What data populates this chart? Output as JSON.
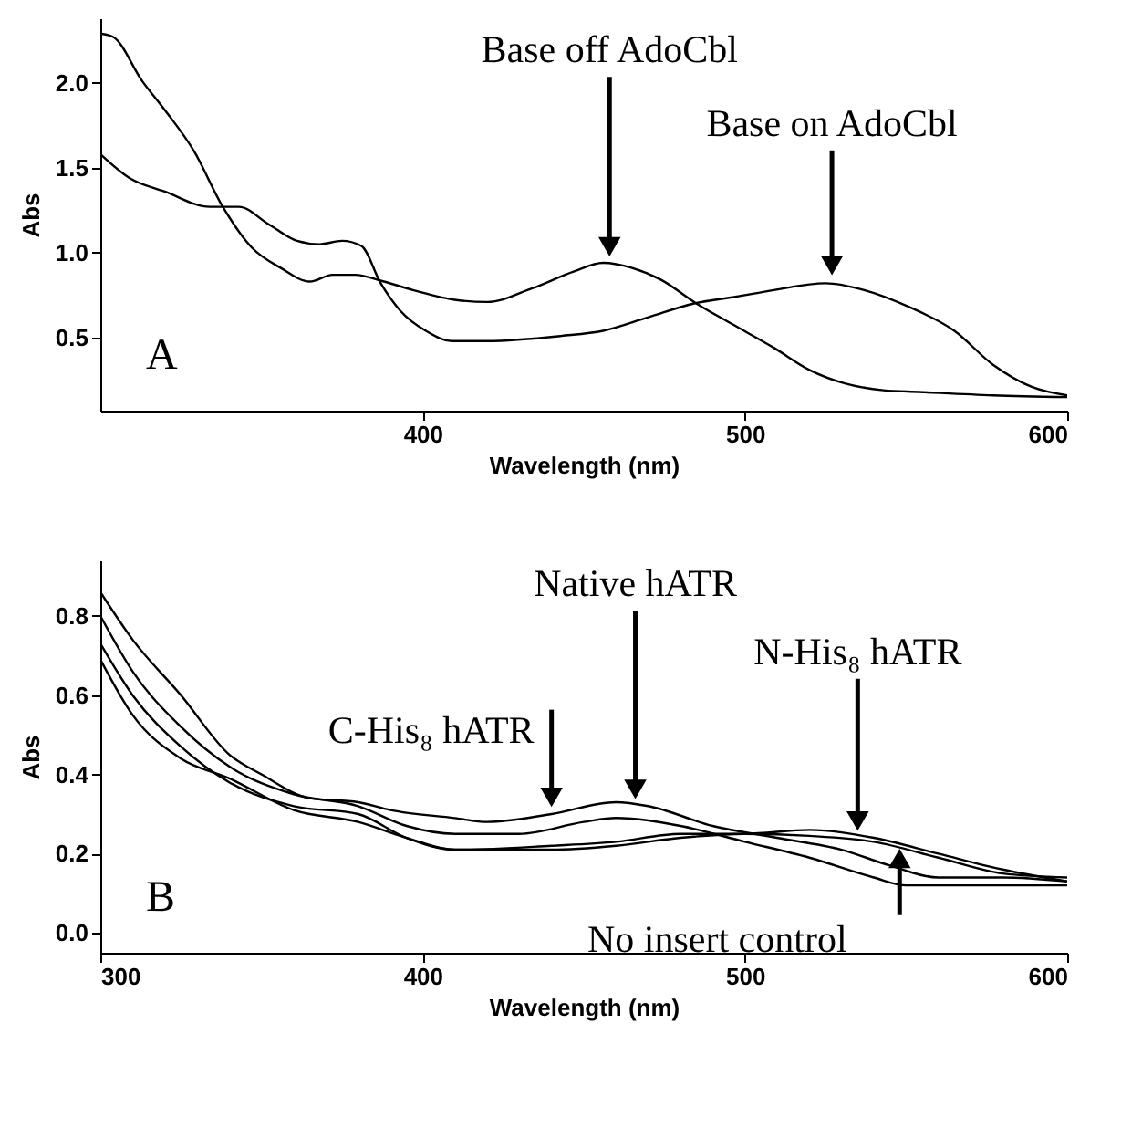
{
  "chart_data": [
    {
      "type": "line",
      "xlabel": "Wavelength (nm)",
      "ylabel": "Abs",
      "xlim": [
        300,
        600
      ],
      "ylim": [
        0.07,
        2.38
      ],
      "xticks": [
        400,
        500,
        600
      ],
      "yticks": [
        {
          "value": 0.5,
          "label": "0.5"
        },
        {
          "value": 1.0,
          "label": "1.0"
        },
        {
          "value": 1.5,
          "label": "1.5"
        },
        {
          "value": 2.0,
          "label": "2.0"
        }
      ],
      "grid": false,
      "annotations": [
        {
          "text": "Base off AdoCbl",
          "x": 458,
          "y": 0.96
        },
        {
          "text": "Base on AdoCbl",
          "x": 527,
          "y": 0.85
        },
        "A"
      ],
      "series": [
        {
          "color": "#000000",
          "x": [
            300,
            304,
            313,
            320,
            329,
            338,
            347,
            356,
            365,
            372,
            379,
            388,
            397,
            411,
            420,
            434,
            447,
            456,
            465,
            474,
            485,
            496,
            509,
            520,
            531,
            543,
            554,
            577,
            600
          ],
          "values": [
            2.29,
            2.27,
            2.01,
            1.84,
            1.6,
            1.27,
            1.03,
            0.91,
            0.83,
            0.87,
            0.87,
            0.83,
            0.78,
            0.72,
            0.71,
            0.79,
            0.89,
            0.94,
            0.91,
            0.84,
            0.7,
            0.58,
            0.44,
            0.31,
            0.23,
            0.19,
            0.18,
            0.16,
            0.15
          ]
        },
        {
          "color": "#000000",
          "x": [
            300,
            309,
            320,
            334,
            343,
            352,
            361,
            368,
            375,
            381,
            387,
            393,
            401,
            409,
            420,
            443,
            456,
            470,
            484,
            497,
            509,
            525,
            537,
            551,
            565,
            577,
            589,
            600
          ],
          "values": [
            1.58,
            1.44,
            1.36,
            1.27,
            1.27,
            1.17,
            1.07,
            1.05,
            1.07,
            1.04,
            0.82,
            0.66,
            0.54,
            0.48,
            0.48,
            0.51,
            0.54,
            0.62,
            0.7,
            0.74,
            0.78,
            0.82,
            0.78,
            0.68,
            0.54,
            0.34,
            0.21,
            0.16
          ]
        }
      ]
    },
    {
      "type": "line",
      "xlabel": "Wavelength (nm)",
      "ylabel": "Abs",
      "xlim": [
        300,
        600
      ],
      "ylim": [
        -0.05,
        0.94
      ],
      "xticks": [
        300,
        400,
        500,
        600
      ],
      "yticks": [
        {
          "value": 0.0,
          "label": "0.0"
        },
        {
          "value": 0.2,
          "label": "0.2"
        },
        {
          "value": 0.4,
          "label": "0.4"
        },
        {
          "value": 0.6,
          "label": "0.6"
        },
        {
          "value": 0.8,
          "label": "0.8"
        }
      ],
      "grid": false,
      "annotations": [
        {
          "text": "Native hATR",
          "x": 466,
          "y": 0.33
        },
        {
          "text": "N-His₈ hATR",
          "x": 535,
          "y": 0.25
        },
        {
          "text": "C-His₈ hATR",
          "x": 440,
          "y": 0.31
        },
        {
          "text": "No insert control",
          "x": 548,
          "y": 0.22
        },
        "B"
      ],
      "series": [
        {
          "color": "#000000",
          "x": [
            300,
            310,
            325,
            340,
            350,
            365,
            380,
            390,
            410,
            420,
            440,
            460,
            470,
            490,
            510,
            530,
            545,
            560,
            580,
            600
          ],
          "values": [
            0.86,
            0.74,
            0.6,
            0.45,
            0.4,
            0.34,
            0.33,
            0.31,
            0.29,
            0.28,
            0.3,
            0.33,
            0.32,
            0.27,
            0.24,
            0.21,
            0.17,
            0.14,
            0.14,
            0.13
          ]
        },
        {
          "color": "#000000",
          "x": [
            300,
            310,
            325,
            340,
            360,
            380,
            395,
            410,
            430,
            450,
            460,
            480,
            500,
            520,
            540,
            550,
            570,
            600
          ],
          "values": [
            0.8,
            0.66,
            0.52,
            0.42,
            0.35,
            0.32,
            0.27,
            0.25,
            0.25,
            0.28,
            0.29,
            0.27,
            0.23,
            0.19,
            0.14,
            0.12,
            0.12,
            0.12
          ]
        },
        {
          "color": "#000000",
          "x": [
            300,
            310,
            325,
            340,
            360,
            380,
            395,
            410,
            440,
            460,
            480,
            500,
            520,
            540,
            560,
            580,
            600
          ],
          "values": [
            0.73,
            0.6,
            0.47,
            0.38,
            0.32,
            0.3,
            0.24,
            0.21,
            0.22,
            0.23,
            0.25,
            0.25,
            0.26,
            0.24,
            0.2,
            0.16,
            0.13
          ]
        },
        {
          "color": "#000000",
          "x": [
            300,
            310,
            325,
            340,
            360,
            380,
            395,
            410,
            440,
            460,
            480,
            500,
            520,
            540,
            560,
            580,
            600
          ],
          "values": [
            0.69,
            0.55,
            0.44,
            0.39,
            0.31,
            0.28,
            0.24,
            0.21,
            0.21,
            0.22,
            0.24,
            0.25,
            0.245,
            0.23,
            0.19,
            0.15,
            0.14
          ]
        }
      ]
    }
  ]
}
